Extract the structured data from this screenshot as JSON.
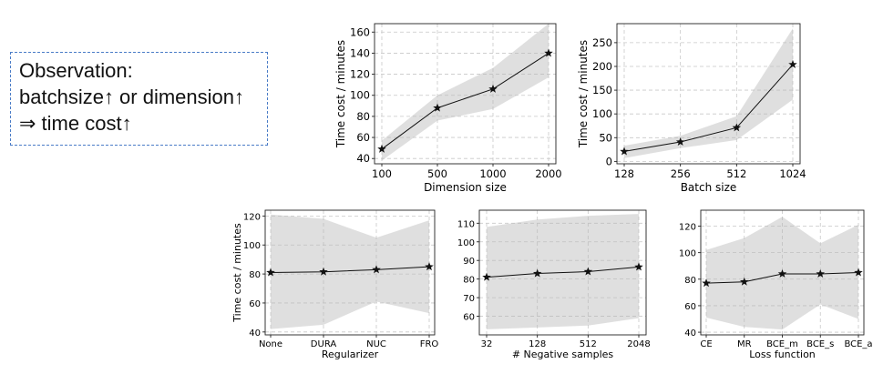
{
  "observation": {
    "lines": [
      "Observation:",
      "batchsize↑ or dimension↑",
      "⇒ time cost↑"
    ]
  },
  "chart_data": [
    {
      "id": "dimension",
      "type": "line",
      "categories": [
        "100",
        "500",
        "1000",
        "2000"
      ],
      "series": [
        {
          "values": [
            49,
            88,
            106,
            140
          ],
          "lower": [
            38,
            76,
            87,
            117
          ],
          "upper": [
            57,
            100,
            126,
            168
          ]
        }
      ],
      "xlabel": "Dimension size",
      "ylabel": "Time cost / minutes",
      "ylim": [
        35,
        168
      ],
      "yticks": [
        40,
        60,
        80,
        100,
        120,
        140,
        160
      ],
      "grid": true,
      "marker": "star"
    },
    {
      "id": "batch",
      "type": "line",
      "categories": [
        "128",
        "256",
        "512",
        "1024"
      ],
      "series": [
        {
          "values": [
            21,
            41,
            71,
            204
          ],
          "lower": [
            7,
            28,
            45,
            130
          ],
          "upper": [
            33,
            54,
            95,
            280
          ]
        }
      ],
      "xlabel": "Batch size",
      "ylabel": "Time cost / minutes",
      "ylim": [
        -5,
        290
      ],
      "yticks": [
        0,
        50,
        100,
        150,
        200,
        250
      ],
      "grid": true,
      "marker": "star"
    },
    {
      "id": "regularizer",
      "type": "line",
      "categories": [
        "None",
        "DURA",
        "NUC",
        "FRO"
      ],
      "series": [
        {
          "values": [
            81,
            81.5,
            83,
            85
          ],
          "lower": [
            42,
            45,
            61,
            53
          ],
          "upper": [
            121,
            118,
            105,
            117
          ]
        }
      ],
      "xlabel": "Regularizer",
      "ylabel": "Time cost / minutes",
      "ylim": [
        38,
        124
      ],
      "yticks": [
        40,
        60,
        80,
        100,
        120
      ],
      "grid": true,
      "marker": "star"
    },
    {
      "id": "negative",
      "type": "line",
      "categories": [
        "32",
        "128",
        "512",
        "2048"
      ],
      "series": [
        {
          "values": [
            81,
            83,
            84,
            86.5
          ],
          "lower": [
            53,
            54,
            55,
            59
          ],
          "upper": [
            108,
            112,
            114,
            115
          ]
        }
      ],
      "xlabel": "# Negative samples",
      "ylabel": "",
      "ylim": [
        50,
        117
      ],
      "yticks": [
        60,
        70,
        80,
        90,
        100,
        110
      ],
      "grid": true,
      "marker": "star"
    },
    {
      "id": "loss",
      "type": "line",
      "categories": [
        "CE",
        "MR",
        "BCE_m",
        "BCE_s",
        "BCE_a"
      ],
      "series": [
        {
          "values": [
            77,
            78,
            84,
            84,
            85
          ],
          "lower": [
            51,
            44,
            42,
            61,
            50
          ],
          "upper": [
            102,
            111,
            127,
            107,
            121
          ]
        }
      ],
      "xlabel": "Loss function",
      "ylabel": "",
      "ylim": [
        38,
        132
      ],
      "yticks": [
        40,
        60,
        80,
        100,
        120
      ],
      "grid": true,
      "marker": "star"
    }
  ]
}
